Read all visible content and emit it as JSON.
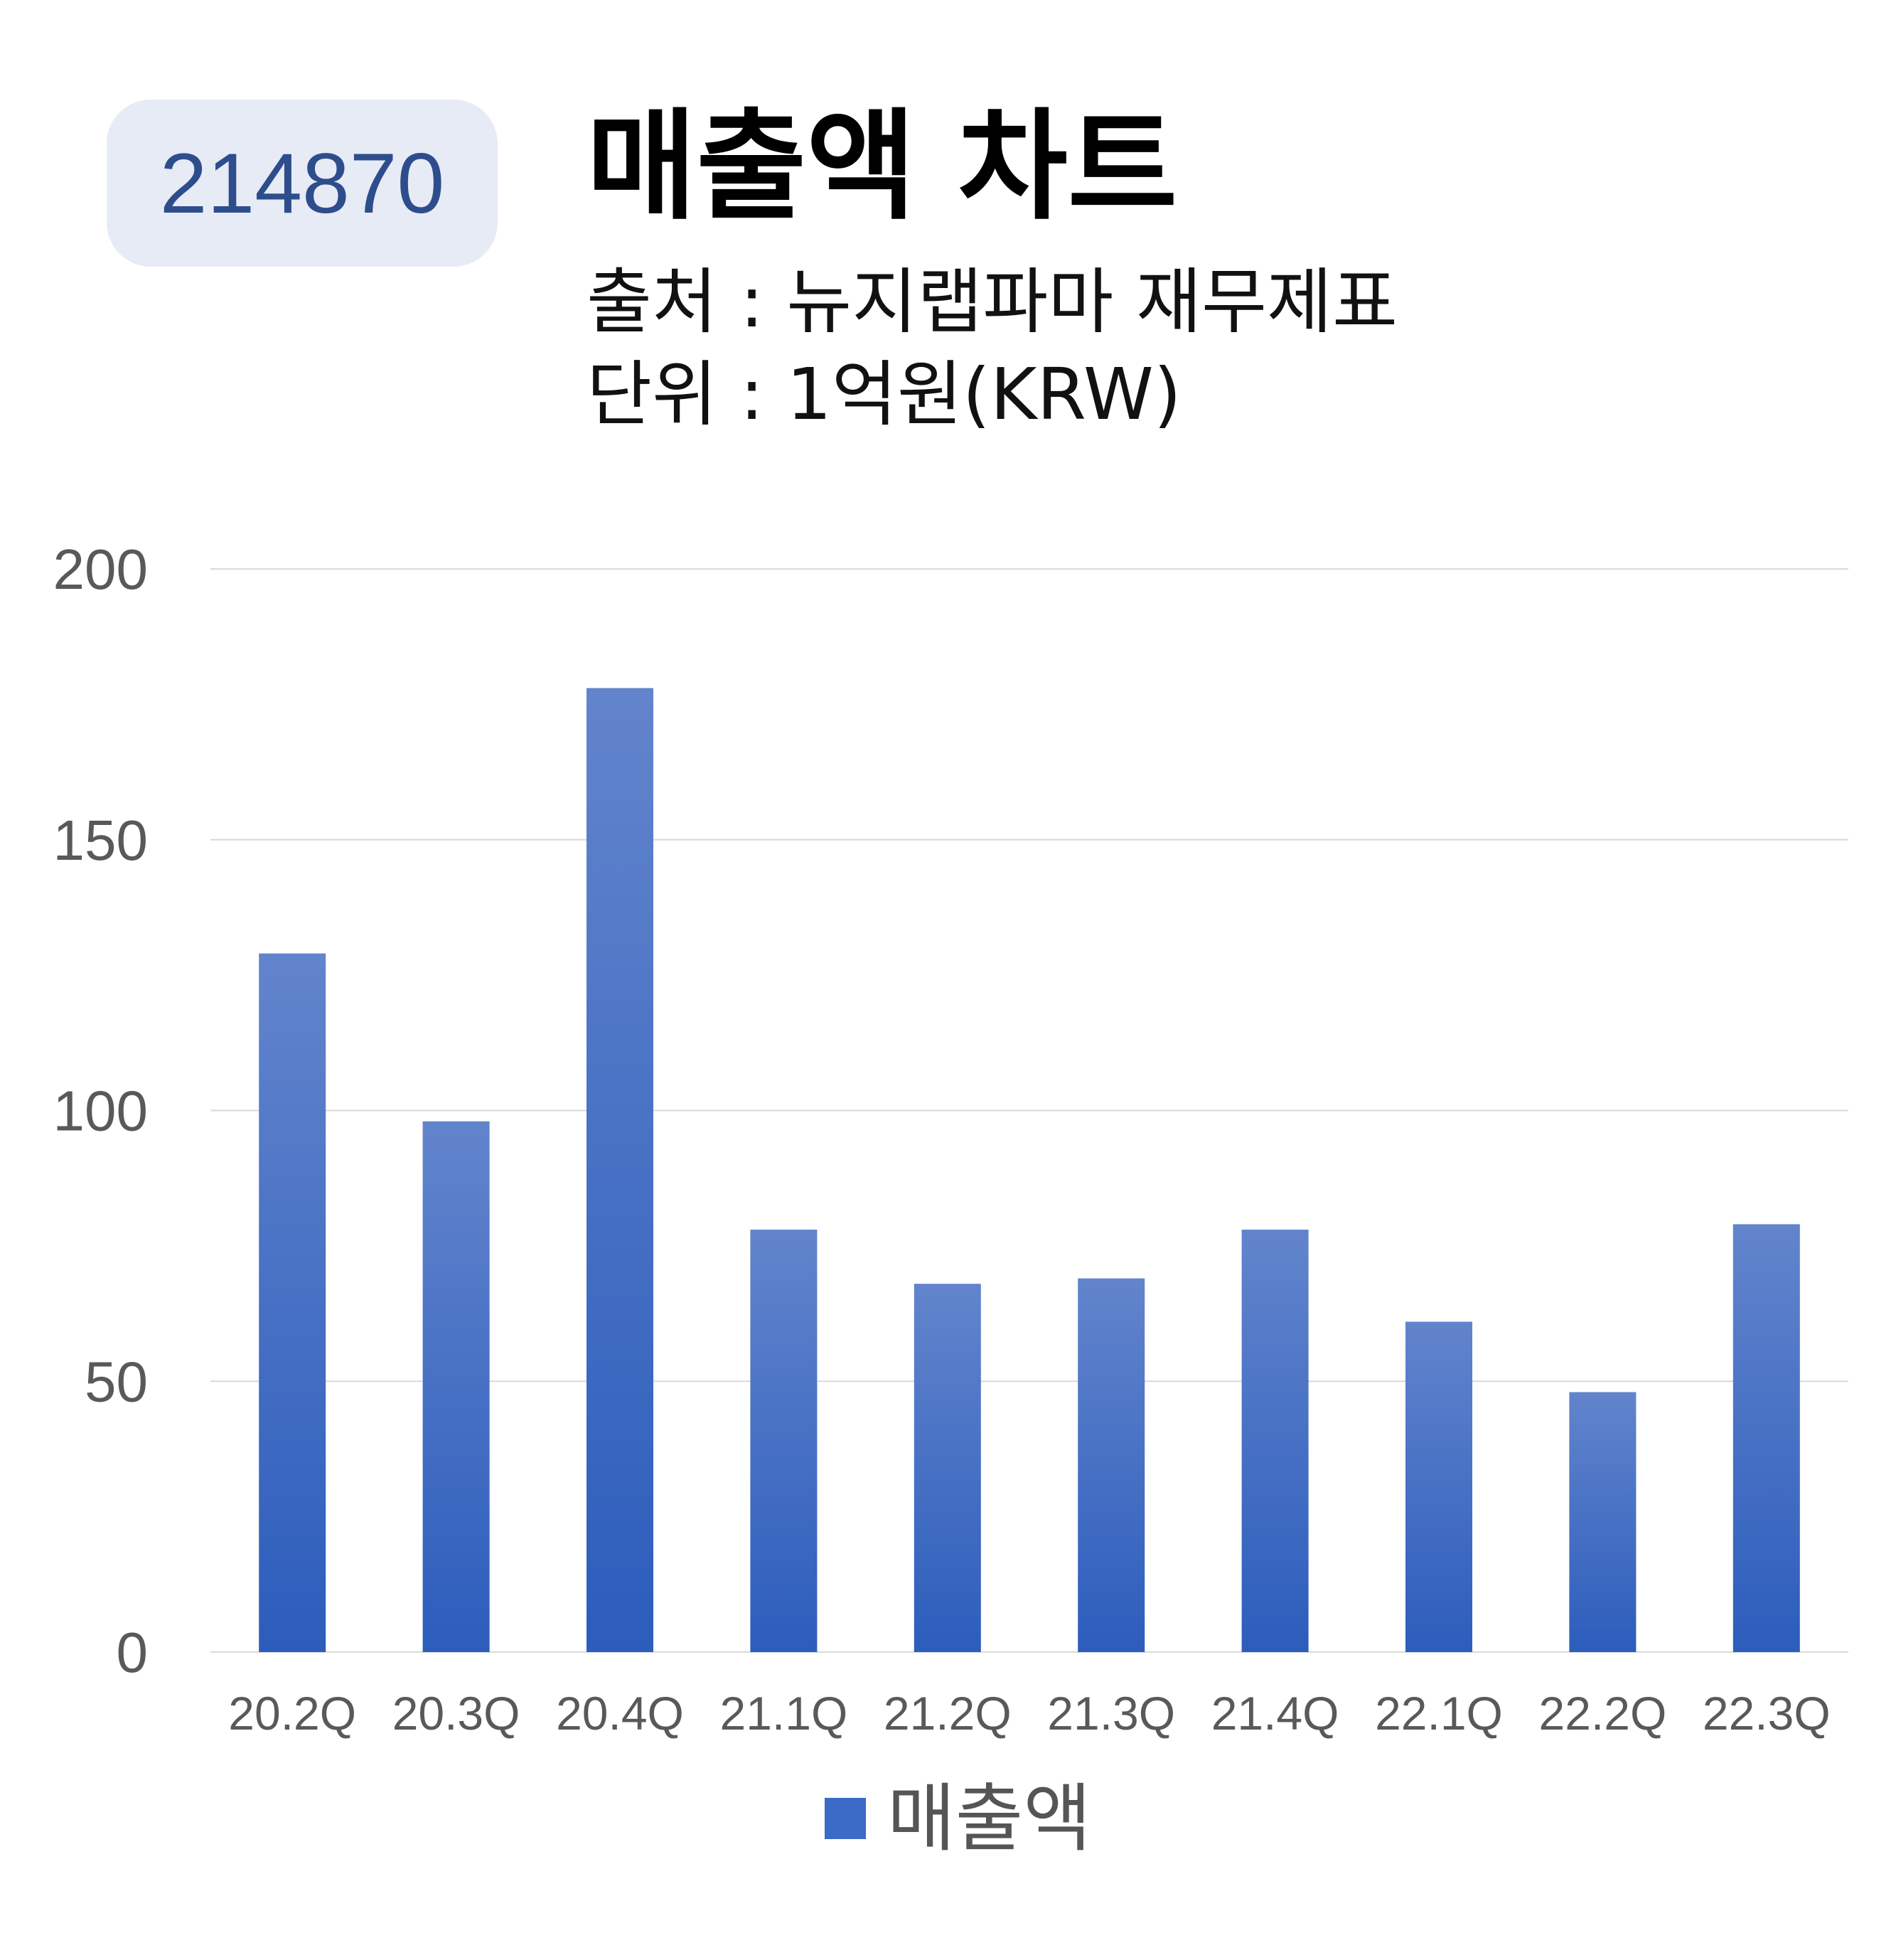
{
  "header": {
    "stock_code": "214870",
    "title": "매출액 차트",
    "source": "출처 : 뉴지랩파마 재무제표",
    "unit": "단위 : 1억원(KRW)"
  },
  "colors": {
    "bar_top": "#6284cc",
    "bar_bottom": "#2c5dbc",
    "grid": "#d9d9d9",
    "badge_bg": "#e6ebf5",
    "badge_text": "#2e4d8c"
  },
  "chart_data": {
    "type": "bar",
    "categories": [
      "20.2Q",
      "20.3Q",
      "20.4Q",
      "21.1Q",
      "21.2Q",
      "21.3Q",
      "21.4Q",
      "22.1Q",
      "22.2Q",
      "22.3Q"
    ],
    "series": [
      {
        "name": "매출액",
        "values": [
          129,
          98,
          178,
          78,
          68,
          69,
          78,
          61,
          48,
          79
        ]
      }
    ],
    "ylim": [
      0,
      200
    ],
    "yticks": [
      "0",
      "50",
      "100",
      "150",
      "200"
    ],
    "grid": true,
    "legend": "bottom"
  }
}
